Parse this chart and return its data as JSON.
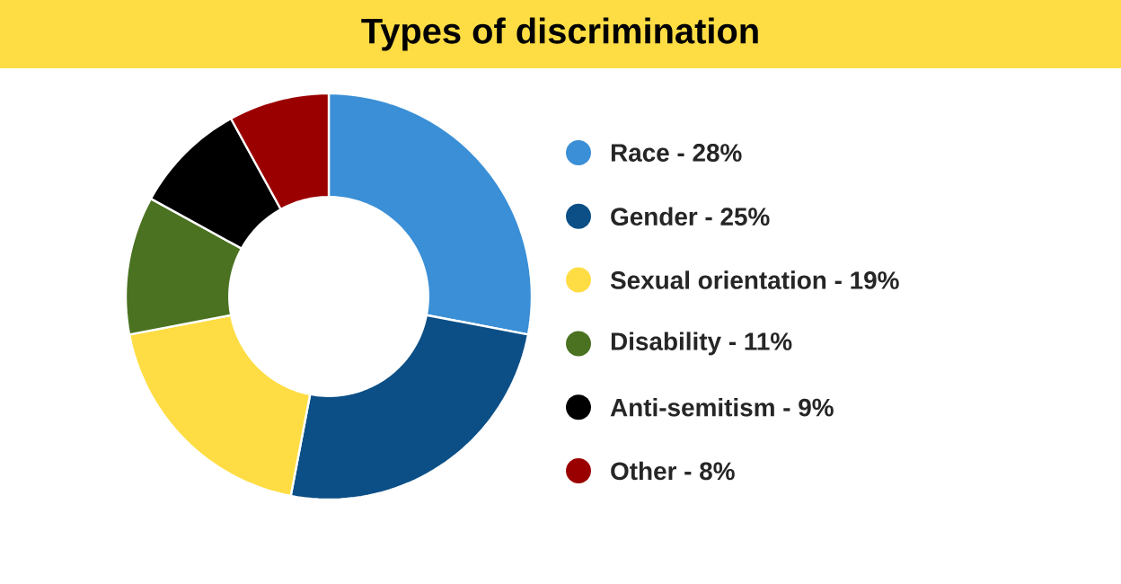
{
  "chart_data": {
    "type": "donut",
    "title": "Types of discrimination",
    "categories": [
      "Race - 28%",
      "Gender - 25%",
      "Sexual orientation - 19%",
      "Disability - 11%",
      "Anti-semitism - 9%",
      "Other - 8%"
    ],
    "values": [
      28,
      25,
      19,
      11,
      9,
      8
    ],
    "colors": [
      "#3a8fd6",
      "#0b4f86",
      "#fedd44",
      "#4a7220",
      "#000000",
      "#9b0000"
    ],
    "legend": "right"
  }
}
